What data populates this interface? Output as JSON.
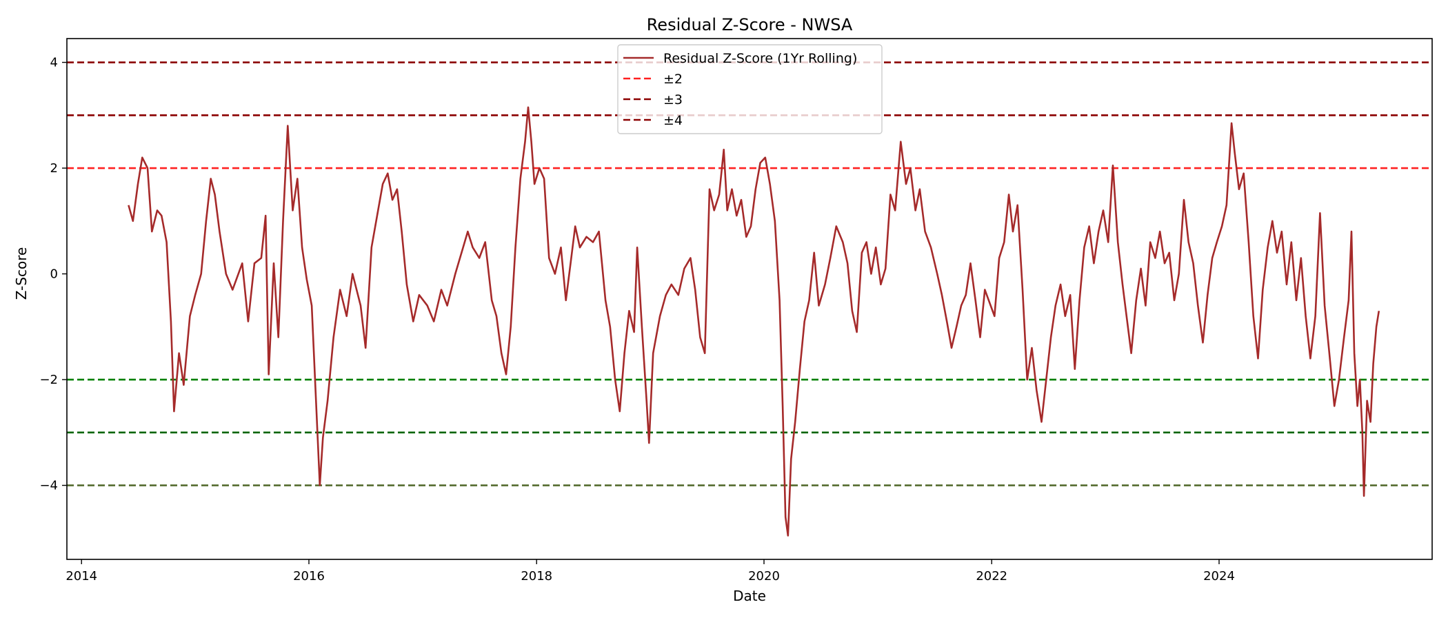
{
  "chart_data": {
    "type": "line",
    "title": "Residual Z-Score - NWSA",
    "xlabel": "Date",
    "ylabel": "Z-Score",
    "xlim": [
      "2013-11-15",
      "2025-11-15"
    ],
    "ylim": [
      -5.4,
      4.45
    ],
    "x_ticks": [
      "2014-01-01",
      "2016-01-01",
      "2018-01-01",
      "2020-01-01",
      "2022-01-01",
      "2024-01-01"
    ],
    "x_tick_labels": [
      "2014",
      "2016",
      "2018",
      "2020",
      "2022",
      "2024"
    ],
    "y_ticks": [
      4,
      2,
      0,
      -2,
      -4
    ],
    "y_tick_labels": [
      "4",
      "2",
      "0",
      "−2",
      "−4"
    ],
    "grid": false,
    "legend_position": "upper center",
    "series": [
      {
        "name": "Residual Z-Score (1Yr Rolling)",
        "color": "#a52a2a",
        "points": [
          [
            "2014-06-01",
            1.3
          ],
          [
            "2014-06-15",
            1.0
          ],
          [
            "2014-07-01",
            1.7
          ],
          [
            "2014-07-15",
            2.2
          ],
          [
            "2014-08-01",
            2.0
          ],
          [
            "2014-08-15",
            0.8
          ],
          [
            "2014-09-01",
            1.2
          ],
          [
            "2014-09-15",
            1.1
          ],
          [
            "2014-10-01",
            0.6
          ],
          [
            "2014-10-15",
            -0.9
          ],
          [
            "2014-10-25",
            -2.6
          ],
          [
            "2014-11-10",
            -1.5
          ],
          [
            "2014-11-25",
            -2.1
          ],
          [
            "2014-12-15",
            -0.8
          ],
          [
            "2015-01-01",
            -0.4
          ],
          [
            "2015-01-20",
            0.0
          ],
          [
            "2015-02-05",
            1.0
          ],
          [
            "2015-02-20",
            1.8
          ],
          [
            "2015-03-05",
            1.5
          ],
          [
            "2015-03-20",
            0.8
          ],
          [
            "2015-04-10",
            0.0
          ],
          [
            "2015-05-01",
            -0.3
          ],
          [
            "2015-06-01",
            0.2
          ],
          [
            "2015-06-20",
            -0.9
          ],
          [
            "2015-07-10",
            0.2
          ],
          [
            "2015-08-01",
            0.3
          ],
          [
            "2015-08-15",
            1.1
          ],
          [
            "2015-08-25",
            -1.9
          ],
          [
            "2015-09-10",
            0.2
          ],
          [
            "2015-09-25",
            -1.2
          ],
          [
            "2015-10-10",
            1.0
          ],
          [
            "2015-10-25",
            2.8
          ],
          [
            "2015-11-10",
            1.2
          ],
          [
            "2015-11-25",
            1.8
          ],
          [
            "2015-12-10",
            0.5
          ],
          [
            "2015-12-25",
            -0.1
          ],
          [
            "2016-01-10",
            -0.6
          ],
          [
            "2016-02-05",
            -4.0
          ],
          [
            "2016-02-15",
            -3.1
          ],
          [
            "2016-03-01",
            -2.4
          ],
          [
            "2016-03-20",
            -1.2
          ],
          [
            "2016-04-10",
            -0.3
          ],
          [
            "2016-05-01",
            -0.8
          ],
          [
            "2016-05-20",
            0.0
          ],
          [
            "2016-06-15",
            -0.6
          ],
          [
            "2016-07-01",
            -1.4
          ],
          [
            "2016-07-20",
            0.5
          ],
          [
            "2016-08-10",
            1.2
          ],
          [
            "2016-08-25",
            1.7
          ],
          [
            "2016-09-10",
            1.9
          ],
          [
            "2016-09-25",
            1.4
          ],
          [
            "2016-10-10",
            1.6
          ],
          [
            "2016-10-25",
            0.8
          ],
          [
            "2016-11-10",
            -0.2
          ],
          [
            "2016-12-01",
            -0.9
          ],
          [
            "2016-12-20",
            -0.4
          ],
          [
            "2017-01-15",
            -0.6
          ],
          [
            "2017-02-05",
            -0.9
          ],
          [
            "2017-03-01",
            -0.3
          ],
          [
            "2017-03-20",
            -0.6
          ],
          [
            "2017-04-15",
            0.0
          ],
          [
            "2017-05-10",
            0.5
          ],
          [
            "2017-05-25",
            0.8
          ],
          [
            "2017-06-10",
            0.5
          ],
          [
            "2017-07-01",
            0.3
          ],
          [
            "2017-07-20",
            0.6
          ],
          [
            "2017-08-10",
            -0.5
          ],
          [
            "2017-08-25",
            -0.8
          ],
          [
            "2017-09-10",
            -1.5
          ],
          [
            "2017-09-25",
            -1.9
          ],
          [
            "2017-10-10",
            -1.0
          ],
          [
            "2017-10-25",
            0.5
          ],
          [
            "2017-11-10",
            1.8
          ],
          [
            "2017-11-25",
            2.5
          ],
          [
            "2017-12-05",
            3.15
          ],
          [
            "2017-12-15",
            2.5
          ],
          [
            "2017-12-25",
            1.7
          ],
          [
            "2018-01-10",
            2.0
          ],
          [
            "2018-01-25",
            1.8
          ],
          [
            "2018-02-10",
            0.3
          ],
          [
            "2018-03-01",
            0.0
          ],
          [
            "2018-03-20",
            0.5
          ],
          [
            "2018-04-05",
            -0.5
          ],
          [
            "2018-04-20",
            0.2
          ],
          [
            "2018-05-05",
            0.9
          ],
          [
            "2018-05-20",
            0.5
          ],
          [
            "2018-06-10",
            0.7
          ],
          [
            "2018-07-01",
            0.6
          ],
          [
            "2018-07-20",
            0.8
          ],
          [
            "2018-08-10",
            -0.5
          ],
          [
            "2018-08-25",
            -1.0
          ],
          [
            "2018-09-10",
            -2.0
          ],
          [
            "2018-09-25",
            -2.6
          ],
          [
            "2018-10-10",
            -1.5
          ],
          [
            "2018-10-25",
            -0.7
          ],
          [
            "2018-11-10",
            -1.1
          ],
          [
            "2018-11-20",
            0.5
          ],
          [
            "2018-12-05",
            -1.0
          ],
          [
            "2018-12-20",
            -2.4
          ],
          [
            "2018-12-28",
            -3.2
          ],
          [
            "2019-01-10",
            -1.5
          ],
          [
            "2019-02-01",
            -0.8
          ],
          [
            "2019-02-20",
            -0.4
          ],
          [
            "2019-03-10",
            -0.2
          ],
          [
            "2019-04-01",
            -0.4
          ],
          [
            "2019-04-20",
            0.1
          ],
          [
            "2019-05-10",
            0.3
          ],
          [
            "2019-05-25",
            -0.3
          ],
          [
            "2019-06-10",
            -1.2
          ],
          [
            "2019-06-25",
            -1.5
          ],
          [
            "2019-07-10",
            1.6
          ],
          [
            "2019-07-25",
            1.2
          ],
          [
            "2019-08-10",
            1.5
          ],
          [
            "2019-08-25",
            2.35
          ],
          [
            "2019-09-05",
            1.2
          ],
          [
            "2019-09-20",
            1.6
          ],
          [
            "2019-10-05",
            1.1
          ],
          [
            "2019-10-20",
            1.4
          ],
          [
            "2019-11-05",
            0.7
          ],
          [
            "2019-11-20",
            0.9
          ],
          [
            "2019-12-05",
            1.6
          ],
          [
            "2019-12-20",
            2.1
          ],
          [
            "2020-01-05",
            2.2
          ],
          [
            "2020-01-20",
            1.7
          ],
          [
            "2020-02-05",
            1.0
          ],
          [
            "2020-02-20",
            -0.5
          ],
          [
            "2020-03-01",
            -2.5
          ],
          [
            "2020-03-10",
            -4.6
          ],
          [
            "2020-03-18",
            -4.95
          ],
          [
            "2020-03-28",
            -3.5
          ],
          [
            "2020-04-10",
            -2.8
          ],
          [
            "2020-04-25",
            -1.8
          ],
          [
            "2020-05-10",
            -0.9
          ],
          [
            "2020-05-25",
            -0.5
          ],
          [
            "2020-06-10",
            0.4
          ],
          [
            "2020-06-25",
            -0.6
          ],
          [
            "2020-07-15",
            -0.2
          ],
          [
            "2020-08-01",
            0.3
          ],
          [
            "2020-08-20",
            0.9
          ],
          [
            "2020-09-10",
            0.6
          ],
          [
            "2020-09-25",
            0.2
          ],
          [
            "2020-10-10",
            -0.7
          ],
          [
            "2020-10-25",
            -1.1
          ],
          [
            "2020-11-10",
            0.4
          ],
          [
            "2020-11-25",
            0.6
          ],
          [
            "2020-12-10",
            0.0
          ],
          [
            "2020-12-25",
            0.5
          ],
          [
            "2021-01-10",
            -0.2
          ],
          [
            "2021-01-25",
            0.1
          ],
          [
            "2021-02-10",
            1.5
          ],
          [
            "2021-02-25",
            1.2
          ],
          [
            "2021-03-15",
            2.5
          ],
          [
            "2021-04-01",
            1.7
          ],
          [
            "2021-04-15",
            2.0
          ],
          [
            "2021-05-01",
            1.2
          ],
          [
            "2021-05-15",
            1.6
          ],
          [
            "2021-06-01",
            0.8
          ],
          [
            "2021-06-20",
            0.5
          ],
          [
            "2021-07-10",
            0.0
          ],
          [
            "2021-07-25",
            -0.4
          ],
          [
            "2021-08-10",
            -0.9
          ],
          [
            "2021-08-25",
            -1.4
          ],
          [
            "2021-09-10",
            -1.0
          ],
          [
            "2021-09-25",
            -0.6
          ],
          [
            "2021-10-10",
            -0.4
          ],
          [
            "2021-10-25",
            0.2
          ],
          [
            "2021-11-10",
            -0.5
          ],
          [
            "2021-11-25",
            -1.2
          ],
          [
            "2021-12-10",
            -0.3
          ],
          [
            "2022-01-10",
            -0.8
          ],
          [
            "2022-01-25",
            0.3
          ],
          [
            "2022-02-10",
            0.6
          ],
          [
            "2022-02-25",
            1.5
          ],
          [
            "2022-03-10",
            0.8
          ],
          [
            "2022-03-25",
            1.3
          ],
          [
            "2022-04-10",
            -0.3
          ],
          [
            "2022-04-25",
            -2.0
          ],
          [
            "2022-05-10",
            -1.4
          ],
          [
            "2022-05-25",
            -2.2
          ],
          [
            "2022-06-10",
            -2.8
          ],
          [
            "2022-06-25",
            -2.0
          ],
          [
            "2022-07-10",
            -1.2
          ],
          [
            "2022-07-25",
            -0.6
          ],
          [
            "2022-08-10",
            -0.2
          ],
          [
            "2022-08-25",
            -0.8
          ],
          [
            "2022-09-10",
            -0.4
          ],
          [
            "2022-09-25",
            -1.8
          ],
          [
            "2022-10-10",
            -0.5
          ],
          [
            "2022-10-25",
            0.5
          ],
          [
            "2022-11-10",
            0.9
          ],
          [
            "2022-11-25",
            0.2
          ],
          [
            "2022-12-10",
            0.8
          ],
          [
            "2022-12-25",
            1.2
          ],
          [
            "2023-01-10",
            0.6
          ],
          [
            "2023-01-25",
            2.05
          ],
          [
            "2023-02-10",
            0.6
          ],
          [
            "2023-02-25",
            -0.2
          ],
          [
            "2023-03-10",
            -0.8
          ],
          [
            "2023-03-25",
            -1.5
          ],
          [
            "2023-04-10",
            -0.5
          ],
          [
            "2023-04-25",
            0.1
          ],
          [
            "2023-05-10",
            -0.6
          ],
          [
            "2023-05-25",
            0.6
          ],
          [
            "2023-06-10",
            0.3
          ],
          [
            "2023-06-25",
            0.8
          ],
          [
            "2023-07-10",
            0.2
          ],
          [
            "2023-07-25",
            0.4
          ],
          [
            "2023-08-10",
            -0.5
          ],
          [
            "2023-08-25",
            0.0
          ],
          [
            "2023-09-10",
            1.4
          ],
          [
            "2023-09-25",
            0.6
          ],
          [
            "2023-10-10",
            0.2
          ],
          [
            "2023-10-25",
            -0.6
          ],
          [
            "2023-11-10",
            -1.3
          ],
          [
            "2023-11-25",
            -0.4
          ],
          [
            "2023-12-10",
            0.3
          ],
          [
            "2023-12-25",
            0.6
          ],
          [
            "2024-01-10",
            0.9
          ],
          [
            "2024-01-25",
            1.3
          ],
          [
            "2024-02-10",
            2.85
          ],
          [
            "2024-02-20",
            2.3
          ],
          [
            "2024-03-05",
            1.6
          ],
          [
            "2024-03-20",
            1.9
          ],
          [
            "2024-04-05",
            0.6
          ],
          [
            "2024-04-20",
            -0.8
          ],
          [
            "2024-05-05",
            -1.6
          ],
          [
            "2024-05-20",
            -0.3
          ],
          [
            "2024-06-05",
            0.5
          ],
          [
            "2024-06-20",
            1.0
          ],
          [
            "2024-07-05",
            0.4
          ],
          [
            "2024-07-20",
            0.8
          ],
          [
            "2024-08-05",
            -0.2
          ],
          [
            "2024-08-20",
            0.6
          ],
          [
            "2024-09-05",
            -0.5
          ],
          [
            "2024-09-20",
            0.3
          ],
          [
            "2024-10-05",
            -0.8
          ],
          [
            "2024-10-20",
            -1.6
          ],
          [
            "2024-11-05",
            -0.8
          ],
          [
            "2024-11-20",
            1.15
          ],
          [
            "2024-12-05",
            -0.6
          ],
          [
            "2024-12-20",
            -1.5
          ],
          [
            "2025-01-05",
            -2.5
          ],
          [
            "2025-01-20",
            -2.0
          ],
          [
            "2025-02-05",
            -1.2
          ],
          [
            "2025-02-20",
            -0.5
          ],
          [
            "2025-03-01",
            0.8
          ],
          [
            "2025-03-10",
            -1.5
          ],
          [
            "2025-03-20",
            -2.5
          ],
          [
            "2025-03-28",
            -2.0
          ],
          [
            "2025-04-05",
            -3.0
          ],
          [
            "2025-04-10",
            -4.2
          ],
          [
            "2025-04-20",
            -2.4
          ],
          [
            "2025-05-01",
            -2.8
          ],
          [
            "2025-05-10",
            -1.7
          ],
          [
            "2025-05-20",
            -1.0
          ],
          [
            "2025-05-28",
            -0.7
          ]
        ]
      }
    ],
    "reference_lines": [
      {
        "y": 4,
        "color": "#8b0000",
        "legend": "±4"
      },
      {
        "y": 3,
        "color": "#8b0000",
        "legend": "±3"
      },
      {
        "y": 2,
        "color": "#ff2020",
        "legend": "±2"
      },
      {
        "y": -2,
        "color": "#008000"
      },
      {
        "y": -3,
        "color": "#006400"
      },
      {
        "y": -4,
        "color": "#556b2f"
      }
    ],
    "legend": [
      {
        "label": "Residual Z-Score (1Yr Rolling)",
        "color": "#a52a2a",
        "style": "solid"
      },
      {
        "label": "±2",
        "color": "#ff2020",
        "style": "dashed"
      },
      {
        "label": "±3",
        "color": "#8b0000",
        "style": "dashed"
      },
      {
        "label": "±4",
        "color": "#8b0000",
        "style": "dashed"
      }
    ]
  }
}
